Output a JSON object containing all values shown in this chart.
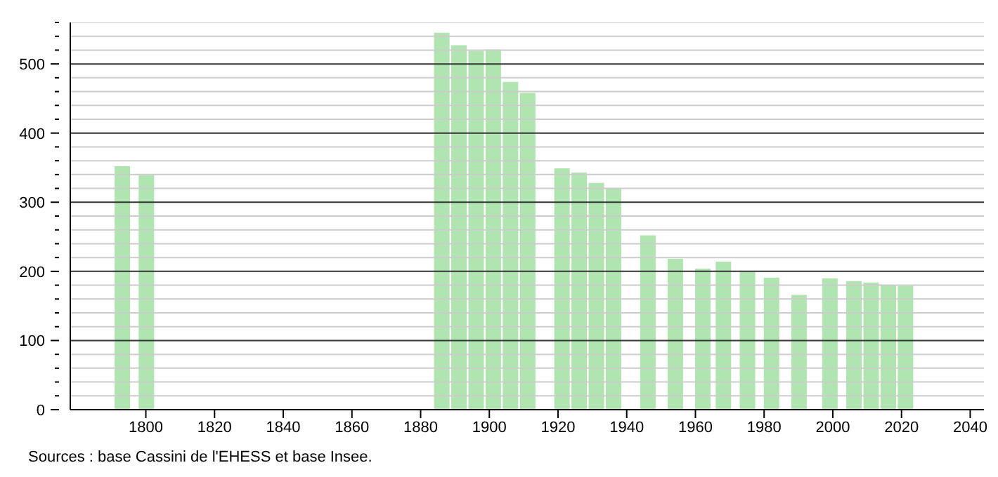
{
  "chart_data": {
    "type": "bar",
    "color": "#b0e4b0",
    "x": [
      1793,
      1800,
      1886,
      1891,
      1896,
      1901,
      1906,
      1911,
      1921,
      1926,
      1931,
      1936,
      1946,
      1954,
      1962,
      1968,
      1975,
      1982,
      1990,
      1999,
      2006,
      2011,
      2016,
      2021
    ],
    "values": [
      352,
      339,
      545,
      527,
      519,
      521,
      474,
      458,
      349,
      343,
      328,
      320,
      252,
      218,
      204,
      214,
      199,
      191,
      166,
      190,
      186,
      184,
      180,
      179
    ],
    "xlim": [
      1778,
      2044
    ],
    "xticks": [
      1800,
      1820,
      1840,
      1860,
      1880,
      1900,
      1920,
      1940,
      1960,
      1980,
      2000,
      2020,
      2040
    ],
    "ylim": [
      0,
      560
    ],
    "yticks": [
      0,
      {
        "value": 20,
        "label": null
      },
      {
        "value": 40,
        "label": null
      },
      {
        "value": 60,
        "label": null
      },
      {
        "value": 80,
        "label": null
      },
      100,
      {
        "value": 120,
        "label": null
      },
      {
        "value": 140,
        "label": null
      },
      {
        "value": 160,
        "label": null
      },
      {
        "value": 180,
        "label": null
      },
      200,
      {
        "value": 220,
        "label": null
      },
      {
        "value": 240,
        "label": null
      },
      {
        "value": 260,
        "label": null
      },
      {
        "value": 280,
        "label": null
      },
      300,
      {
        "value": 320,
        "label": null
      },
      {
        "value": 340,
        "label": null
      },
      {
        "value": 360,
        "label": null
      },
      {
        "value": 380,
        "label": null
      },
      400,
      {
        "value": 420,
        "label": null
      },
      {
        "value": 440,
        "label": null
      },
      {
        "value": 460,
        "label": null
      },
      {
        "value": 480,
        "label": null
      },
      500,
      {
        "value": 520,
        "label": null
      },
      {
        "value": 540,
        "label": null
      },
      {
        "value": 560,
        "label": null
      }
    ],
    "grid": true,
    "annotations": [
      "Sources : base Cassini de l'EHESS et base Insee."
    ]
  }
}
